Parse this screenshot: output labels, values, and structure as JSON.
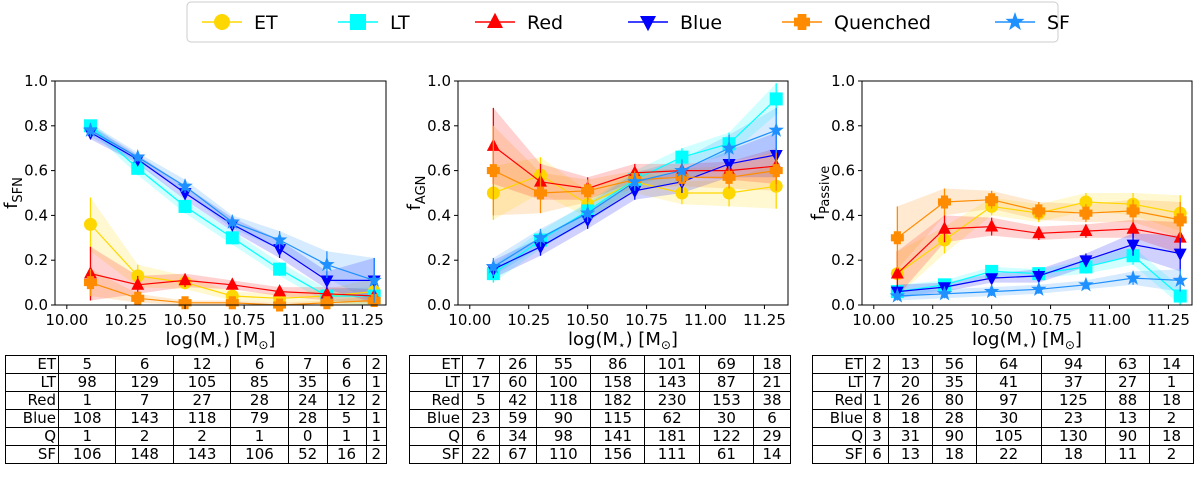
{
  "legend": [
    {
      "name": "ET",
      "color": "#FFD700",
      "marker": "circle"
    },
    {
      "name": "LT",
      "color": "#00FFFF",
      "marker": "square"
    },
    {
      "name": "Red",
      "color": "#FF0000",
      "marker": "triangle-up"
    },
    {
      "name": "Blue",
      "color": "#0000FF",
      "marker": "triangle-down"
    },
    {
      "name": "Quenched",
      "color": "#FF8C00",
      "marker": "plus"
    },
    {
      "name": "SF",
      "color": "#1E90FF",
      "marker": "star"
    }
  ],
  "chart_data": [
    {
      "type": "line",
      "ylabel_main": "f",
      "ylabel_sub": "SFN",
      "xlabel_main": "log(M",
      "xlabel_star": "⋆",
      "xlabel_unit": ") [M",
      "xlabel_sun": "⊙",
      "xlabel_end": "]",
      "xlim": [
        9.95,
        11.35
      ],
      "ylim": [
        0.0,
        1.0
      ],
      "xticks": [
        "10.00",
        "10.25",
        "10.50",
        "10.75",
        "11.00",
        "11.25"
      ],
      "yticks": [
        "0.0",
        "0.2",
        "0.4",
        "0.6",
        "0.8",
        "1.0"
      ],
      "x": [
        10.1,
        10.3,
        10.5,
        10.7,
        10.9,
        11.1,
        11.3
      ],
      "series": [
        {
          "name": "ET",
          "values": [
            0.36,
            0.13,
            0.1,
            0.04,
            0.03,
            0.04,
            0.06
          ],
          "err": [
            0.12,
            0.05,
            0.03,
            0.02,
            0.02,
            0.03,
            0.06
          ]
        },
        {
          "name": "LT",
          "values": [
            0.8,
            0.61,
            0.44,
            0.3,
            0.16,
            0.04,
            0.04
          ],
          "err": [
            0.02,
            0.03,
            0.03,
            0.03,
            0.03,
            0.03,
            0.04
          ]
        },
        {
          "name": "Red",
          "values": [
            0.14,
            0.09,
            0.11,
            0.09,
            0.06,
            0.05,
            0.04
          ],
          "err": [
            0.12,
            0.04,
            0.03,
            0.02,
            0.02,
            0.03,
            0.03
          ]
        },
        {
          "name": "Blue",
          "values": [
            0.77,
            0.65,
            0.5,
            0.36,
            0.25,
            0.11,
            0.11
          ],
          "err": [
            0.03,
            0.02,
            0.03,
            0.03,
            0.04,
            0.04,
            0.1
          ]
        },
        {
          "name": "Quenched",
          "values": [
            0.1,
            0.03,
            0.01,
            0.01,
            0.0,
            0.01,
            0.02
          ],
          "err": [
            0.06,
            0.02,
            0.01,
            0.01,
            0.01,
            0.01,
            0.02
          ]
        },
        {
          "name": "SF",
          "values": [
            0.78,
            0.66,
            0.53,
            0.37,
            0.29,
            0.18,
            0.11
          ],
          "err": [
            0.03,
            0.02,
            0.03,
            0.03,
            0.04,
            0.06,
            0.1
          ]
        }
      ]
    },
    {
      "type": "line",
      "ylabel_main": "f",
      "ylabel_sub": "AGN",
      "xlabel_main": "log(M",
      "xlabel_star": "⋆",
      "xlabel_unit": ") [M",
      "xlabel_sun": "⊙",
      "xlabel_end": "]",
      "xlim": [
        9.95,
        11.35
      ],
      "ylim": [
        0.0,
        1.0
      ],
      "xticks": [
        "10.00",
        "10.25",
        "10.50",
        "10.75",
        "11.00",
        "11.25"
      ],
      "yticks": [
        "0.0",
        "0.2",
        "0.4",
        "0.6",
        "0.8",
        "1.0"
      ],
      "x": [
        10.1,
        10.3,
        10.5,
        10.7,
        10.9,
        11.1,
        11.3
      ],
      "series": [
        {
          "name": "ET",
          "values": [
            0.5,
            0.58,
            0.45,
            0.55,
            0.5,
            0.5,
            0.53
          ],
          "err": [
            0.12,
            0.08,
            0.06,
            0.05,
            0.05,
            0.06,
            0.1
          ]
        },
        {
          "name": "LT",
          "values": [
            0.14,
            0.29,
            0.42,
            0.56,
            0.66,
            0.72,
            0.92
          ],
          "err": [
            0.04,
            0.04,
            0.04,
            0.04,
            0.04,
            0.05,
            0.07
          ]
        },
        {
          "name": "Red",
          "values": [
            0.71,
            0.55,
            0.52,
            0.59,
            0.6,
            0.6,
            0.62
          ],
          "err": [
            0.17,
            0.08,
            0.05,
            0.04,
            0.03,
            0.04,
            0.08
          ]
        },
        {
          "name": "Blue",
          "values": [
            0.16,
            0.26,
            0.38,
            0.51,
            0.55,
            0.63,
            0.67
          ],
          "err": [
            0.04,
            0.04,
            0.04,
            0.04,
            0.05,
            0.06,
            0.1
          ]
        },
        {
          "name": "Quenched",
          "values": [
            0.6,
            0.5,
            0.51,
            0.56,
            0.57,
            0.57,
            0.6
          ],
          "err": [
            0.2,
            0.09,
            0.05,
            0.04,
            0.04,
            0.05,
            0.09
          ]
        },
        {
          "name": "SF",
          "values": [
            0.17,
            0.3,
            0.41,
            0.55,
            0.6,
            0.7,
            0.78
          ],
          "err": [
            0.04,
            0.04,
            0.04,
            0.04,
            0.05,
            0.06,
            0.1
          ]
        }
      ]
    },
    {
      "type": "line",
      "ylabel_main": "f",
      "ylabel_sub": "Passive",
      "xlabel_main": "log(M",
      "xlabel_star": "⋆",
      "xlabel_unit": ") [M",
      "xlabel_sun": "⊙",
      "xlabel_end": "]",
      "xlim": [
        9.95,
        11.35
      ],
      "ylim": [
        0.0,
        1.0
      ],
      "xticks": [
        "10.00",
        "10.25",
        "10.50",
        "10.75",
        "11.00",
        "11.25"
      ],
      "yticks": [
        "0.0",
        "0.2",
        "0.4",
        "0.6",
        "0.8",
        "1.0"
      ],
      "x": [
        10.1,
        10.3,
        10.5,
        10.7,
        10.9,
        11.1,
        11.3
      ],
      "series": [
        {
          "name": "ET",
          "values": [
            0.14,
            0.29,
            0.44,
            0.41,
            0.46,
            0.45,
            0.41
          ],
          "err": [
            0.1,
            0.06,
            0.04,
            0.04,
            0.04,
            0.05,
            0.08
          ]
        },
        {
          "name": "LT",
          "values": [
            0.06,
            0.09,
            0.15,
            0.14,
            0.17,
            0.22,
            0.04
          ],
          "err": [
            0.03,
            0.02,
            0.02,
            0.02,
            0.03,
            0.04,
            0.04
          ]
        },
        {
          "name": "Red",
          "values": [
            0.14,
            0.34,
            0.35,
            0.32,
            0.33,
            0.34,
            0.3
          ],
          "err": [
            0.1,
            0.06,
            0.04,
            0.03,
            0.03,
            0.04,
            0.07
          ]
        },
        {
          "name": "Blue",
          "values": [
            0.06,
            0.08,
            0.12,
            0.13,
            0.2,
            0.27,
            0.23
          ],
          "err": [
            0.03,
            0.02,
            0.02,
            0.03,
            0.03,
            0.05,
            0.08
          ]
        },
        {
          "name": "Quenched",
          "values": [
            0.3,
            0.46,
            0.47,
            0.42,
            0.41,
            0.42,
            0.38
          ],
          "err": [
            0.14,
            0.06,
            0.04,
            0.04,
            0.04,
            0.05,
            0.08
          ]
        },
        {
          "name": "SF",
          "values": [
            0.04,
            0.05,
            0.06,
            0.07,
            0.09,
            0.12,
            0.11
          ],
          "err": [
            0.02,
            0.02,
            0.02,
            0.02,
            0.02,
            0.03,
            0.05
          ]
        }
      ]
    }
  ],
  "tables": [
    {
      "rows": [
        {
          "label": "ET",
          "cells": [
            "5",
            "6",
            "12",
            "6",
            "7",
            "6",
            "2"
          ]
        },
        {
          "label": "LT",
          "cells": [
            "98",
            "129",
            "105",
            "85",
            "35",
            "6",
            "1"
          ]
        },
        {
          "label": "Red",
          "cells": [
            "1",
            "7",
            "27",
            "28",
            "24",
            "12",
            "2"
          ]
        },
        {
          "label": "Blue",
          "cells": [
            "108",
            "143",
            "118",
            "79",
            "28",
            "5",
            "1"
          ]
        },
        {
          "label": "Q",
          "cells": [
            "1",
            "2",
            "2",
            "1",
            "0",
            "1",
            "1"
          ]
        },
        {
          "label": "SF",
          "cells": [
            "106",
            "148",
            "143",
            "106",
            "52",
            "16",
            "2"
          ]
        }
      ]
    },
    {
      "rows": [
        {
          "label": "ET",
          "cells": [
            "7",
            "26",
            "55",
            "86",
            "101",
            "69",
            "18"
          ]
        },
        {
          "label": "LT",
          "cells": [
            "17",
            "60",
            "100",
            "158",
            "143",
            "87",
            "21"
          ]
        },
        {
          "label": "Red",
          "cells": [
            "5",
            "42",
            "118",
            "182",
            "230",
            "153",
            "38"
          ]
        },
        {
          "label": "Blue",
          "cells": [
            "23",
            "59",
            "90",
            "115",
            "62",
            "30",
            "6"
          ]
        },
        {
          "label": "Q",
          "cells": [
            "6",
            "34",
            "98",
            "141",
            "181",
            "122",
            "29"
          ]
        },
        {
          "label": "SF",
          "cells": [
            "22",
            "67",
            "110",
            "156",
            "111",
            "61",
            "14"
          ]
        }
      ]
    },
    {
      "rows": [
        {
          "label": "ET",
          "cells": [
            "2",
            "13",
            "56",
            "64",
            "94",
            "63",
            "14"
          ]
        },
        {
          "label": "LT",
          "cells": [
            "7",
            "20",
            "35",
            "41",
            "37",
            "27",
            "1"
          ]
        },
        {
          "label": "Red",
          "cells": [
            "1",
            "26",
            "80",
            "97",
            "125",
            "88",
            "18"
          ]
        },
        {
          "label": "Blue",
          "cells": [
            "8",
            "18",
            "28",
            "30",
            "23",
            "13",
            "2"
          ]
        },
        {
          "label": "Q",
          "cells": [
            "3",
            "31",
            "90",
            "105",
            "130",
            "90",
            "18"
          ]
        },
        {
          "label": "SF",
          "cells": [
            "6",
            "13",
            "18",
            "22",
            "18",
            "11",
            "2"
          ]
        }
      ]
    }
  ]
}
